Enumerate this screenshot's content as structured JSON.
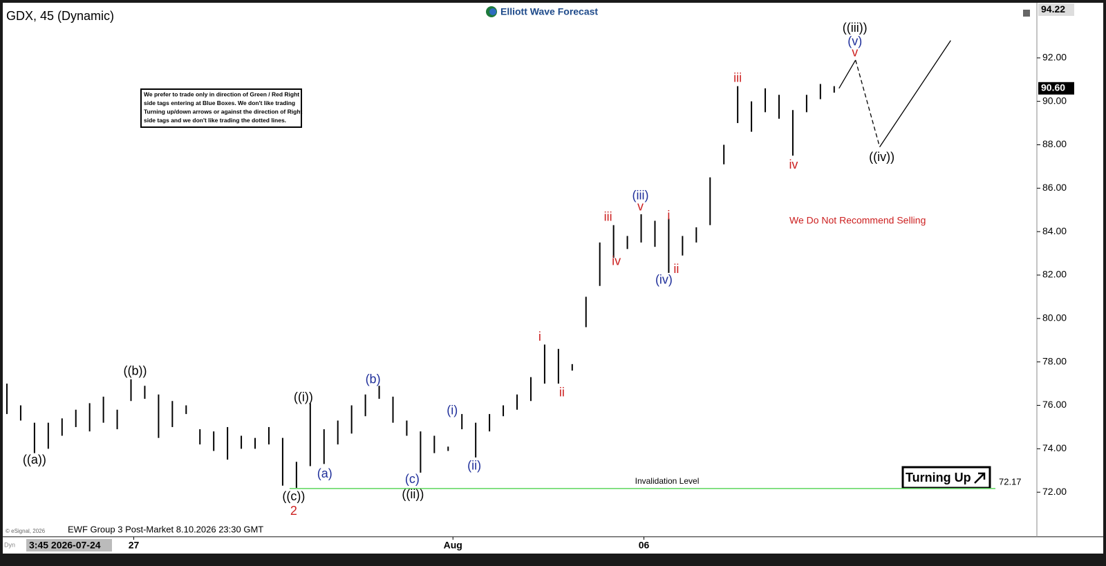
{
  "chart_data": {
    "type": "ohlc",
    "title": "GDX, 45 (Dynamic)",
    "logo": "Elliott Wave Forecast",
    "footer": "EWF Group 3 Post-Market 8.10.2026 23:30 GMT",
    "copyright": "© eSignal, 2026",
    "mode": "Dyn",
    "start_stamp": "3:45 2026-07-24",
    "note": [
      "We prefer to trade only in direction of Green / Red Right",
      "side tags entering at Blue Boxes. We don't like trading",
      "Turning up/down arrows or against the direction of Right",
      "side tags and we don't like trading the dotted lines."
    ],
    "color": "#000000",
    "lows": [
      75.6,
      75.3,
      73.8,
      74.0,
      74.6,
      75.0,
      74.8,
      75.2,
      74.9,
      76.2,
      76.3,
      74.5,
      75.0,
      75.6,
      74.2,
      73.9,
      73.5,
      74.0,
      74.0,
      74.2,
      72.3,
      72.2,
      73.2,
      73.3,
      74.2,
      74.7,
      75.5,
      76.3,
      75.2,
      74.6,
      72.9,
      73.8,
      73.9,
      74.9,
      73.6,
      74.8,
      75.5,
      75.8,
      76.2,
      77.0,
      77.0,
      77.6,
      79.6,
      81.5,
      82.8,
      83.2,
      83.5,
      83.3,
      82.1,
      82.9,
      83.5,
      84.3,
      87.1,
      89.0,
      88.6,
      89.5,
      89.2,
      87.5,
      89.5,
      90.1,
      90.4
    ],
    "highs": [
      77.0,
      76.0,
      75.2,
      75.2,
      75.4,
      75.8,
      76.1,
      76.4,
      75.8,
      77.2,
      76.9,
      76.5,
      76.2,
      76.0,
      74.9,
      74.8,
      75.0,
      74.6,
      74.5,
      75.0,
      74.5,
      73.4,
      76.1,
      74.9,
      75.3,
      76.0,
      76.5,
      76.9,
      76.4,
      75.3,
      74.8,
      74.6,
      74.1,
      75.6,
      75.2,
      75.6,
      76.0,
      76.5,
      77.3,
      78.8,
      78.6,
      77.9,
      81.0,
      83.5,
      84.3,
      83.8,
      84.8,
      84.5,
      84.6,
      83.8,
      84.2,
      86.5,
      88.0,
      90.7,
      90.0,
      90.6,
      90.3,
      89.6,
      90.3,
      90.8,
      90.7
    ],
    "projection": {
      "x": [
        60.35,
        61.55,
        63.3,
        68.45
      ],
      "y": [
        90.6,
        91.9,
        87.9,
        92.8
      ]
    },
    "xlim": [
      -0.3,
      74.7
    ],
    "ylim": [
      69.97,
      94.54
    ],
    "xticks": [
      {
        "value": 9.2,
        "label": "27"
      },
      {
        "value": 32.35,
        "label": "Aug"
      },
      {
        "value": 46.2,
        "label": "06"
      }
    ],
    "yticks": [
      {
        "value": 72,
        "label": "72.00"
      },
      {
        "value": 74,
        "label": "74.00"
      },
      {
        "value": 76,
        "label": "76.00"
      },
      {
        "value": 78,
        "label": "78.00"
      },
      {
        "value": 80,
        "label": "80.00"
      },
      {
        "value": 82,
        "label": "82.00"
      },
      {
        "value": 84,
        "label": "84.00"
      },
      {
        "value": 86,
        "label": "86.00"
      },
      {
        "value": 88,
        "label": "88.00"
      },
      {
        "value": 90,
        "label": "90.00"
      },
      {
        "value": 92,
        "label": "92.00"
      }
    ],
    "top_tag": 94.22,
    "last_price": {
      "value": 90.6,
      "label": "90.60"
    },
    "invalidation": {
      "value": 72.17,
      "text": "Invalidation Level",
      "color": "#5cd65c"
    },
    "signal": "Turning Up",
    "annotations": [
      {
        "text": "((a))",
        "x": 2.0,
        "y": 73.46,
        "color": "#000000"
      },
      {
        "text": "((b))",
        "x": 9.3,
        "y": 77.55,
        "color": "#000000"
      },
      {
        "text": "((i))",
        "x": 21.5,
        "y": 76.34,
        "color": "#000000"
      },
      {
        "text": "((c))",
        "x": 20.8,
        "y": 71.78,
        "color": "#000000"
      },
      {
        "text": "2",
        "x": 20.8,
        "y": 71.11,
        "color": "#cc1f1f"
      },
      {
        "text": "(a)",
        "x": 23.05,
        "y": 72.82,
        "color": "#1f2f9a"
      },
      {
        "text": "(b)",
        "x": 26.55,
        "y": 77.17,
        "color": "#1f2f9a"
      },
      {
        "text": "(c)",
        "x": 29.4,
        "y": 72.57,
        "color": "#1f2f9a"
      },
      {
        "text": "((ii))",
        "x": 29.45,
        "y": 71.87,
        "color": "#000000"
      },
      {
        "text": "(i)",
        "x": 32.3,
        "y": 75.74,
        "color": "#1f2f9a"
      },
      {
        "text": "(ii)",
        "x": 33.9,
        "y": 73.2,
        "color": "#1f2f9a"
      },
      {
        "text": "i",
        "x": 38.65,
        "y": 79.13,
        "color": "#cc1f1f"
      },
      {
        "text": "ii",
        "x": 40.25,
        "y": 76.56,
        "color": "#cc1f1f"
      },
      {
        "text": "iii",
        "x": 43.6,
        "y": 84.65,
        "color": "#cc1f1f"
      },
      {
        "text": "iv",
        "x": 44.2,
        "y": 82.62,
        "color": "#cc1f1f"
      },
      {
        "text": "(iii)",
        "x": 45.95,
        "y": 85.63,
        "color": "#1f2f9a"
      },
      {
        "text": "v",
        "x": 45.95,
        "y": 85.12,
        "color": "#cc1f1f"
      },
      {
        "text": "i",
        "x": 48.0,
        "y": 84.71,
        "color": "#cc1f1f"
      },
      {
        "text": "ii",
        "x": 48.55,
        "y": 82.24,
        "color": "#cc1f1f"
      },
      {
        "text": "(iv)",
        "x": 47.65,
        "y": 81.76,
        "color": "#1f2f9a"
      },
      {
        "text": "iii",
        "x": 53.0,
        "y": 91.05,
        "color": "#cc1f1f"
      },
      {
        "text": "iv",
        "x": 57.05,
        "y": 87.06,
        "color": "#cc1f1f"
      },
      {
        "text": "((iii))",
        "x": 61.5,
        "y": 93.36,
        "color": "#000000"
      },
      {
        "text": "(v)",
        "x": 61.5,
        "y": 92.73,
        "color": "#1f2f9a"
      },
      {
        "text": "v",
        "x": 61.5,
        "y": 92.22,
        "color": "#cc1f1f"
      },
      {
        "text": "((iv))",
        "x": 63.45,
        "y": 87.4,
        "color": "#000000"
      },
      {
        "text": "We Do Not Recommend Selling",
        "x": 61.7,
        "y": 84.49,
        "color": "#cc1f1f"
      }
    ]
  }
}
